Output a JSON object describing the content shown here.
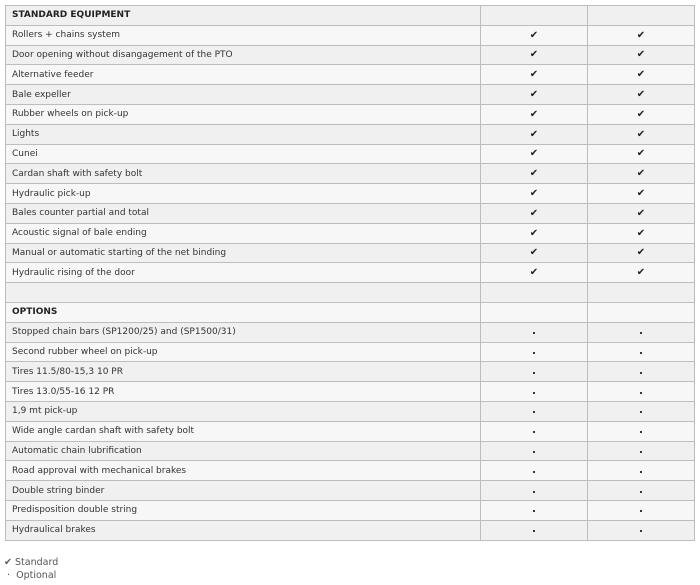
{
  "sections": [
    {
      "title": "STANDARD EQUIPMENT",
      "icon": "check-icon",
      "items": [
        "Rollers + chains system",
        "Door opening without disangagement of the PTO",
        "Alternative feeder",
        "Bale expeller",
        "Rubber wheels on pick-up",
        "Lights",
        "Cunei",
        "Cardan shaft with safety bolt",
        "Hydraulic pick-up",
        "Bales counter partial and total",
        "Acoustic signal of bale ending",
        "Manual or automatic starting of the net binding",
        "Hydraulic rising of the door"
      ]
    },
    {
      "title": "OPTIONS",
      "icon": "dot-icon",
      "items": [
        "Stopped chain bars (SP1200/25) and (SP1500/31)",
        "Second rubber wheel on pick-up",
        "Tires 11.5/80-15,3 10 PR",
        "Tires 13.0/55-16 12 PR",
        "1,9 mt pick-up",
        "Wide angle cardan shaft with safety bolt",
        "Automatic chain lubrification",
        "Road approval with mechanical brakes",
        "Double string binder",
        "Predisposition double string",
        "Hydraulical brakes"
      ]
    }
  ],
  "legend": {
    "standard_symbol": "✔",
    "standard": "Standard",
    "optional_symbol": "·",
    "optional": "Optional"
  }
}
